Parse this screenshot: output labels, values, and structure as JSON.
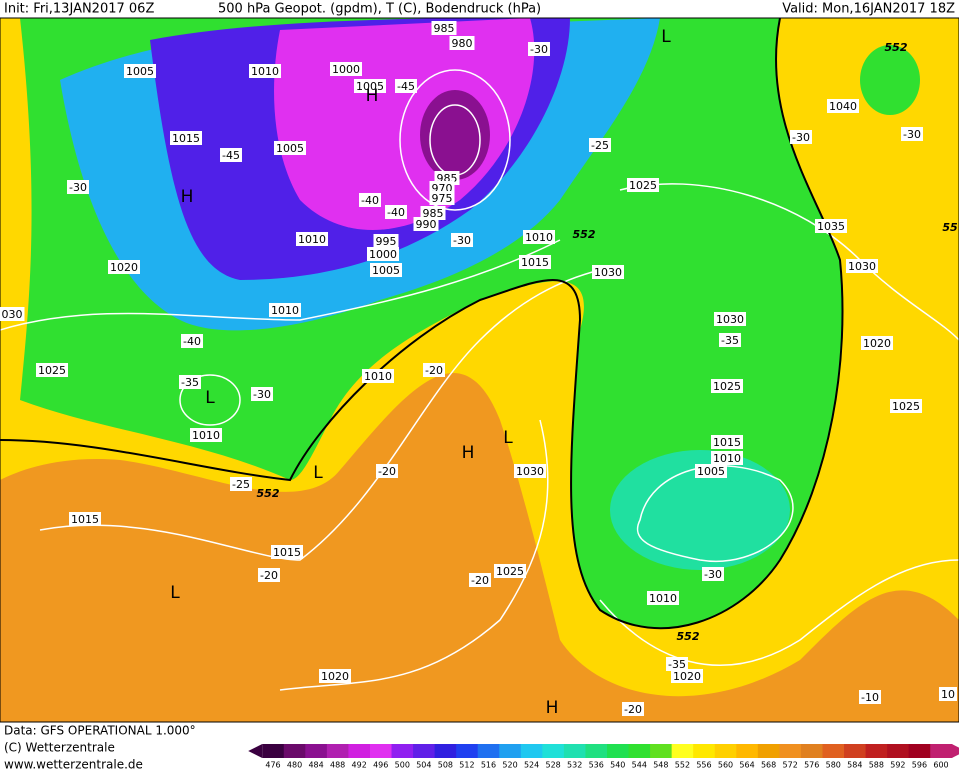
{
  "header": {
    "init": "Init: Fri,13JAN2017 06Z",
    "title": "500 hPa Geopot. (gpdm), T (C), Bodendruck (hPa)",
    "valid": "Valid: Mon,16JAN2017 18Z"
  },
  "map": {
    "pressure_labels": [
      "985",
      "980",
      "1005",
      "1010",
      "1000",
      "1005",
      "1015",
      "1005",
      "985",
      "970",
      "975",
      "985",
      "990",
      "995",
      "1000",
      "1005",
      "1010",
      "1020",
      "1010",
      "1010",
      "1015",
      "1025",
      "1030",
      "1035",
      "1030",
      "1040",
      "1030",
      "1025",
      "1020",
      "1025",
      "1015",
      "1010",
      "1005",
      "1010",
      "1010",
      "1025",
      "030",
      "1030",
      "1015",
      "1015",
      "1025",
      "1010",
      "1020",
      "1020",
      "10"
    ],
    "temperature_labels": [
      "-45",
      "-45",
      "-40",
      "-40",
      "-30",
      "-30",
      "-30",
      "-25",
      "-30",
      "-30",
      "-40",
      "-35",
      "-30",
      "-20",
      "-20",
      "-25",
      "-20",
      "-20",
      "-35",
      "-30",
      "-35",
      "-20",
      "-10"
    ],
    "height_labels": [
      "552",
      "552",
      "552",
      "552",
      "55"
    ],
    "centers": [
      "H",
      "H",
      "L",
      "L",
      "L",
      "H",
      "L",
      "L",
      "H"
    ]
  },
  "footer": {
    "data": "Data: GFS OPERATIONAL 1.000°",
    "copyright": "(C) Wetterzentrale",
    "url": "www.wetterzentrale.de"
  },
  "colorbar": {
    "values": [
      476,
      480,
      484,
      488,
      492,
      496,
      500,
      504,
      508,
      512,
      516,
      520,
      524,
      528,
      532,
      536,
      540,
      544,
      548,
      552,
      556,
      560,
      564,
      568,
      572,
      576,
      580,
      584,
      588,
      592,
      596,
      600
    ],
    "colors": [
      "#3a0040",
      "#6a0a6a",
      "#8a1090",
      "#b020b0",
      "#d020e0",
      "#e030f0",
      "#9020f0",
      "#6020e8",
      "#3020e0",
      "#2040f0",
      "#2070f0",
      "#20a0f0",
      "#20c8f0",
      "#20e0d8",
      "#20e0b0",
      "#20e080",
      "#20e050",
      "#30e030",
      "#60e020",
      "#ffff20",
      "#ffe800",
      "#ffd000",
      "#ffb800",
      "#f0a000",
      "#f09020",
      "#e08020",
      "#e06020",
      "#d04020",
      "#c02020",
      "#b01020",
      "#a00020",
      "#c02070"
    ]
  }
}
